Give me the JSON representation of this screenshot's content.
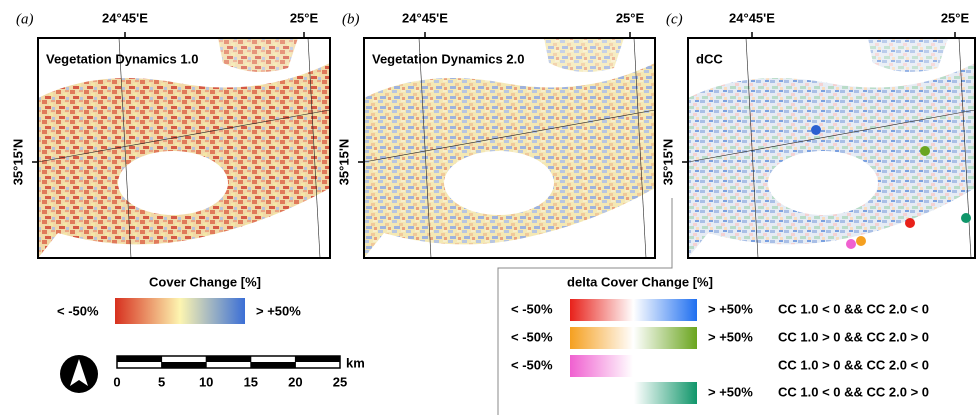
{
  "panels": [
    {
      "label": "(a)",
      "title": "Vegetation Dynamics 1.0",
      "lon_labels": [
        "24°45'E",
        "25°E"
      ],
      "lat_label": "35°15'N"
    },
    {
      "label": "(b)",
      "title": "Vegetation Dynamics 2.0",
      "lon_labels": [
        "24°45'E",
        "25°E"
      ],
      "lat_label": "35°15'N"
    },
    {
      "label": "(c)",
      "title": "dCC",
      "lon_labels": [
        "24°45'E",
        "25°E"
      ],
      "lat_label": "35°15'N"
    }
  ],
  "legend": {
    "title": "Cover Change [%]",
    "min_label": "< -50%",
    "max_label": "> +50%"
  },
  "scale_bar": {
    "unit": "km",
    "ticks": [
      0,
      5,
      10,
      15,
      20,
      25
    ]
  },
  "delta_legend": {
    "title": "delta Cover Change [%]",
    "rows": [
      {
        "min_label": "< -50%",
        "max_label": "> +50%",
        "condition": "CC 1.0 < 0 && CC 2.0 < 0"
      },
      {
        "min_label": "< -50%",
        "max_label": "> +50%",
        "condition": "CC 1.0 > 0 && CC 2.0 > 0"
      },
      {
        "min_label": "< -50%",
        "condition": "CC 1.0 > 0 && CC 2.0 < 0"
      },
      {
        "max_label": "> +50%",
        "condition": "CC 1.0 < 0 && CC 2.0 > 0"
      }
    ]
  }
}
